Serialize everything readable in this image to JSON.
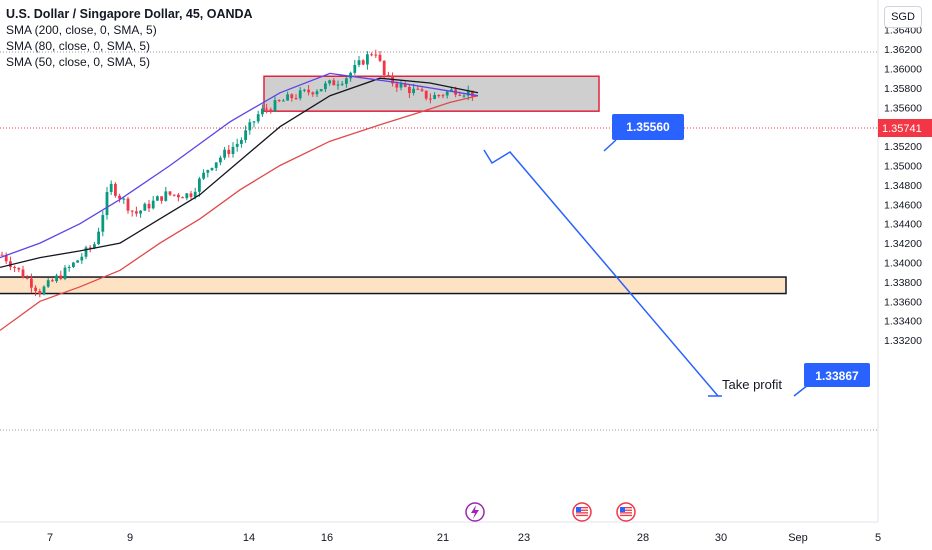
{
  "header": {
    "title": "U.S. Dollar / Singapore Dollar, 45, OANDA",
    "indicators": [
      "SMA (200, close, 0, SMA, 5)",
      "SMA (80, close, 0, SMA, 5)",
      "SMA (50, close, 0, SMA, 5)"
    ],
    "currency": "SGD"
  },
  "annotations": {
    "resistance_label": "1.35560",
    "target_label": "1.33867",
    "take_profit_text": "Take profit",
    "current_price_label": "1.35741"
  },
  "colors": {
    "candle_up": "#089981",
    "candle_down": "#f23645",
    "sma200": "#e04a4a",
    "sma80": "#131722",
    "sma50": "#5b45e8",
    "annotation_blue": "#2962ff",
    "zone_border": "#e0233e",
    "support_fill": "#fde3c4"
  },
  "chart_data": {
    "type": "line",
    "title": "U.S. Dollar / Singapore Dollar, 45, OANDA",
    "xlabel": "",
    "ylabel": "",
    "ylim": [
      1.331,
      1.365
    ],
    "y_ticks": [
      "1.36400",
      "1.36200",
      "1.36000",
      "1.35800",
      "1.35600",
      "1.35400",
      "1.35200",
      "1.35000",
      "1.34800",
      "1.34600",
      "1.34400",
      "1.34200",
      "1.34000",
      "1.33800",
      "1.33600",
      "1.33400",
      "1.33200"
    ],
    "x_ticks": [
      "7",
      "9",
      "14",
      "16",
      "21",
      "23",
      "28",
      "30",
      "Sep",
      "5"
    ],
    "series": [
      {
        "name": "SMA (200, close, 0, SMA, 5)",
        "values": [
          1.333,
          1.336,
          1.3375,
          1.3392,
          1.342,
          1.3445,
          1.3475,
          1.35,
          1.3525,
          1.3542,
          1.3555,
          1.3565,
          1.3572
        ]
      },
      {
        "name": "SMA (80, close, 0, SMA, 5)",
        "values": [
          1.3395,
          1.3405,
          1.3412,
          1.342,
          1.3445,
          1.347,
          1.3505,
          1.354,
          1.3572,
          1.359,
          1.3585,
          1.3575
        ]
      },
      {
        "name": "SMA (50, close, 0, SMA, 5)",
        "values": [
          1.3405,
          1.342,
          1.344,
          1.3465,
          1.35,
          1.3545,
          1.3575,
          1.3595,
          1.3585,
          1.3572
        ]
      }
    ],
    "last_price": 1.35741,
    "resistance_zone": [
      1.3556,
      1.3592
    ],
    "support_zone": [
      1.3368,
      1.3385
    ],
    "target": 1.33867
  }
}
